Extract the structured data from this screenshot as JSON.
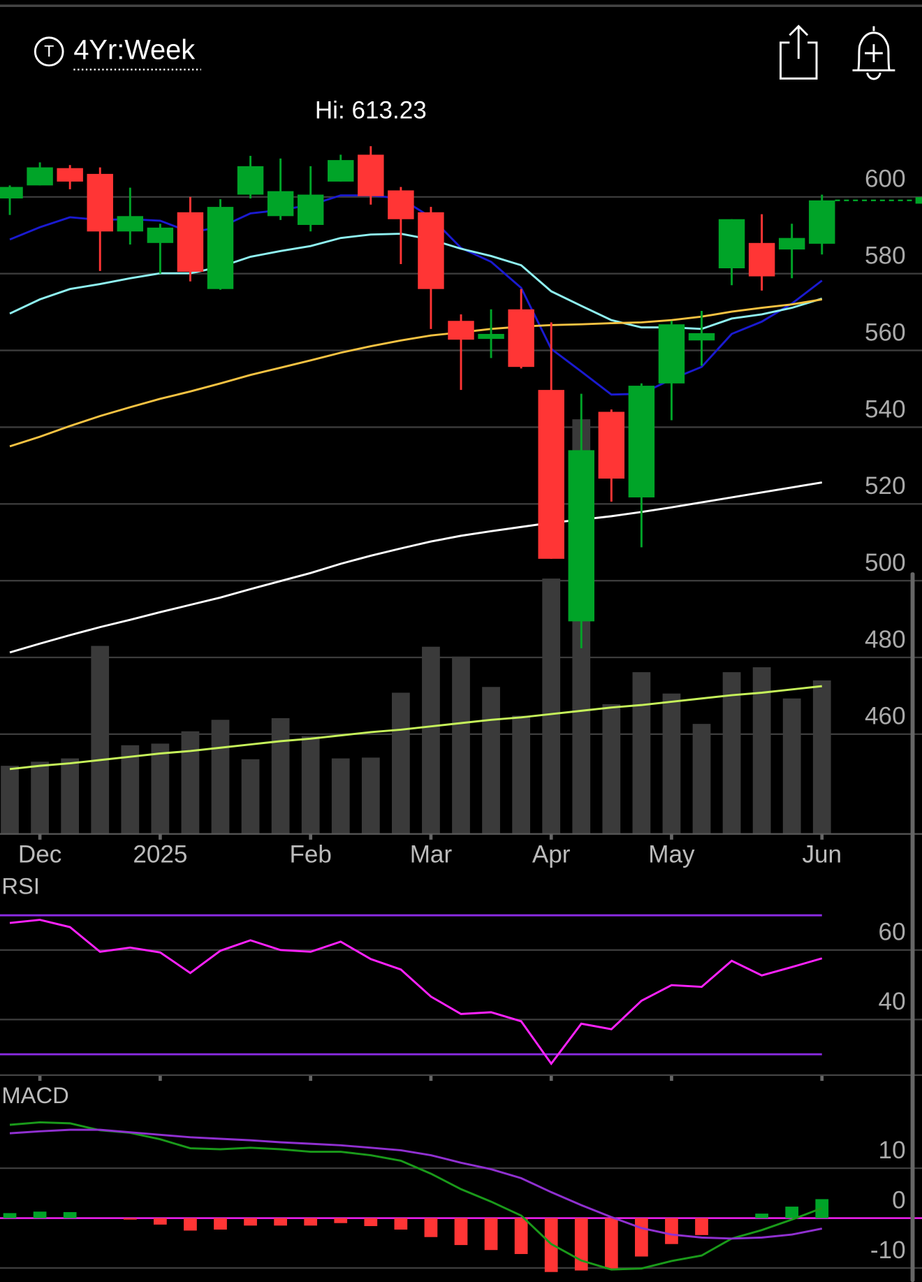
{
  "header": {
    "title": "4Yr:Week"
  },
  "chart_data": [
    {
      "type": "candlestick",
      "annotation": "Hi: 613.23",
      "categories": [
        null,
        "Dec",
        null,
        null,
        null,
        "2025",
        null,
        null,
        null,
        null,
        "Feb",
        null,
        null,
        null,
        "Mar",
        null,
        null,
        null,
        "Apr",
        null,
        null,
        null,
        "May",
        null,
        null,
        null,
        null,
        "Jun"
      ],
      "open": [
        599.6,
        603,
        607.5,
        606,
        591,
        588,
        596,
        576,
        600.6,
        595,
        592.7,
        604,
        611,
        601.7,
        596,
        567.7,
        563,
        570.7,
        549.7,
        489.4,
        544,
        521.7,
        551.4,
        562.6,
        581.4,
        588,
        586.3,
        587.8
      ],
      "high": [
        603,
        609,
        608.3,
        607.7,
        602.4,
        593,
        600,
        599.4,
        610.7,
        610,
        608,
        611,
        613.23,
        602.6,
        597.4,
        569.4,
        570.7,
        576,
        567.3,
        548.7,
        544.6,
        551.4,
        567.7,
        570.3,
        594.2,
        595.5,
        593,
        600.6
      ],
      "low": [
        595.3,
        603,
        602,
        580.7,
        587.6,
        580,
        578,
        575.8,
        599.6,
        594,
        591,
        604,
        598,
        582.5,
        565.6,
        549.7,
        558,
        555.3,
        505.7,
        482.4,
        520.6,
        508.7,
        541.8,
        556,
        577,
        575.6,
        578.8,
        585
      ],
      "close": [
        602.6,
        607.7,
        604,
        591,
        595,
        592,
        580.5,
        597.4,
        608,
        601.5,
        600.6,
        609.6,
        600.2,
        594.2,
        576,
        562.8,
        564.3,
        555.7,
        505.7,
        534,
        526.6,
        550.8,
        566.8,
        564.5,
        594.2,
        579.3,
        589.3,
        599.1
      ],
      "up_color": "#00a428",
      "down_color": "#ff3535",
      "ylim": [
        434,
        630
      ],
      "yticks": [
        460,
        480,
        500,
        520,
        540,
        560,
        580,
        600
      ],
      "grid": true,
      "last_price_line": true,
      "series": [
        {
          "color": "#1a1ad0",
          "values": [
            588.9,
            592.1,
            594.7,
            594.0,
            594.2,
            593.8,
            590.8,
            592.1,
            595.7,
            596.6,
            597.9,
            600.4,
            600.4,
            599.6,
            594.7,
            586.7,
            583.1,
            576.3,
            560.4,
            554.5,
            548.5,
            548.7,
            552.5,
            555.7,
            564.3,
            567.5,
            572.2,
            578.2
          ]
        },
        {
          "color": "#8ff2f2",
          "values": [
            569.6,
            573.3,
            576.0,
            577.3,
            578.8,
            580.1,
            580.1,
            581.8,
            584.4,
            585.9,
            587.2,
            589.3,
            590.2,
            590.4,
            588.9,
            586.5,
            584.6,
            582.2,
            575.4,
            571.6,
            567.9,
            566.0,
            566.0,
            565.6,
            568.3,
            569.4,
            571.1,
            573.5
          ]
        },
        {
          "color": "#f5c242",
          "values": [
            535.0,
            537.5,
            540.3,
            542.9,
            545.2,
            547.4,
            549.3,
            551.4,
            553.6,
            555.5,
            557.4,
            559.4,
            561.1,
            562.6,
            563.9,
            564.7,
            565.6,
            566.2,
            566.6,
            566.8,
            567.1,
            567.3,
            567.9,
            568.8,
            570.1,
            571.1,
            572.0,
            573.3
          ]
        },
        {
          "color": "#ffffff",
          "values": [
            481.3,
            483.6,
            485.8,
            487.9,
            489.8,
            491.8,
            493.7,
            495.6,
            497.8,
            499.9,
            502.0,
            504.4,
            506.5,
            508.4,
            510.2,
            511.7,
            512.9,
            514.0,
            515.1,
            515.9,
            516.8,
            517.9,
            519.1,
            520.4,
            521.7,
            523.0,
            524.3,
            525.6
          ]
        }
      ],
      "volume": {
        "values": [
          83,
          88,
          92,
          229,
          108,
          110,
          125,
          139,
          91,
          141,
          119,
          92,
          93,
          172,
          228,
          216,
          179,
          144,
          311,
          505,
          158,
          197,
          171,
          134,
          197,
          203,
          165,
          187
        ],
        "color": "#3a3a3a",
        "ylim": [
          0,
          916
        ],
        "ma_color": "#c6f25a",
        "ma_values": [
          79,
          83,
          86,
          90,
          94,
          98,
          101,
          105,
          109,
          113,
          116,
          120,
          124,
          127,
          131,
          135,
          139,
          142,
          146,
          150,
          154,
          157,
          161,
          165,
          169,
          172,
          176,
          180
        ]
      }
    },
    {
      "type": "line",
      "title": "RSI",
      "values": [
        67.8,
        68.7,
        66.6,
        59.5,
        60.7,
        59.3,
        53.4,
        59.8,
        62.8,
        60.0,
        59.5,
        62.4,
        57.4,
        54.4,
        46.6,
        41.6,
        42.1,
        39.5,
        27.3,
        38.8,
        37.2,
        45.4,
        49.9,
        49.4,
        56.9,
        52.7,
        55.1,
        57.6
      ],
      "color": "#ff22ff",
      "ylim": [
        24,
        80
      ],
      "yticks": [
        40,
        60
      ],
      "levels": [
        30,
        70
      ],
      "level_color": "#8a2be2",
      "grid": true
    },
    {
      "type": "macd",
      "title": "MACD",
      "series": [
        {
          "color": "#1a9a1a",
          "values": [
            18.7,
            19.2,
            19.0,
            17.6,
            17.1,
            15.8,
            14.0,
            13.8,
            14.1,
            13.8,
            13.3,
            13.3,
            12.6,
            11.5,
            8.9,
            5.8,
            3.3,
            0.5,
            -5.2,
            -8.5,
            -10.3,
            -10.1,
            -8.6,
            -7.5,
            -4.1,
            -2.4,
            -0.3,
            2.0
          ]
        },
        {
          "color": "#9030d0",
          "values": [
            17.0,
            17.4,
            17.7,
            17.7,
            17.2,
            16.7,
            16.2,
            15.9,
            15.6,
            15.2,
            14.9,
            14.6,
            14.1,
            13.6,
            12.6,
            11.1,
            9.8,
            8.0,
            5.2,
            2.6,
            0.2,
            -2.0,
            -3.3,
            -3.9,
            -4.1,
            -3.9,
            -3.3,
            -2.1
          ]
        }
      ],
      "histogram": {
        "values": [
          1.0,
          1.3,
          1.2,
          0,
          -0.3,
          -1.3,
          -2.5,
          -2.3,
          -1.5,
          -1.5,
          -1.5,
          -1.0,
          -1.6,
          -2.3,
          -3.8,
          -5.4,
          -6.4,
          -7.2,
          -10.8,
          -10.5,
          -10.2,
          -7.7,
          -5.2,
          -3.4,
          0,
          0.9,
          2.3,
          3.8
        ],
        "up_color": "#00a428",
        "down_color": "#ff3535"
      },
      "zero_color": "#ff22ff",
      "ylim": [
        -12.8,
        26.2
      ],
      "yticks": [
        10,
        0,
        -10
      ],
      "grid": true
    }
  ]
}
